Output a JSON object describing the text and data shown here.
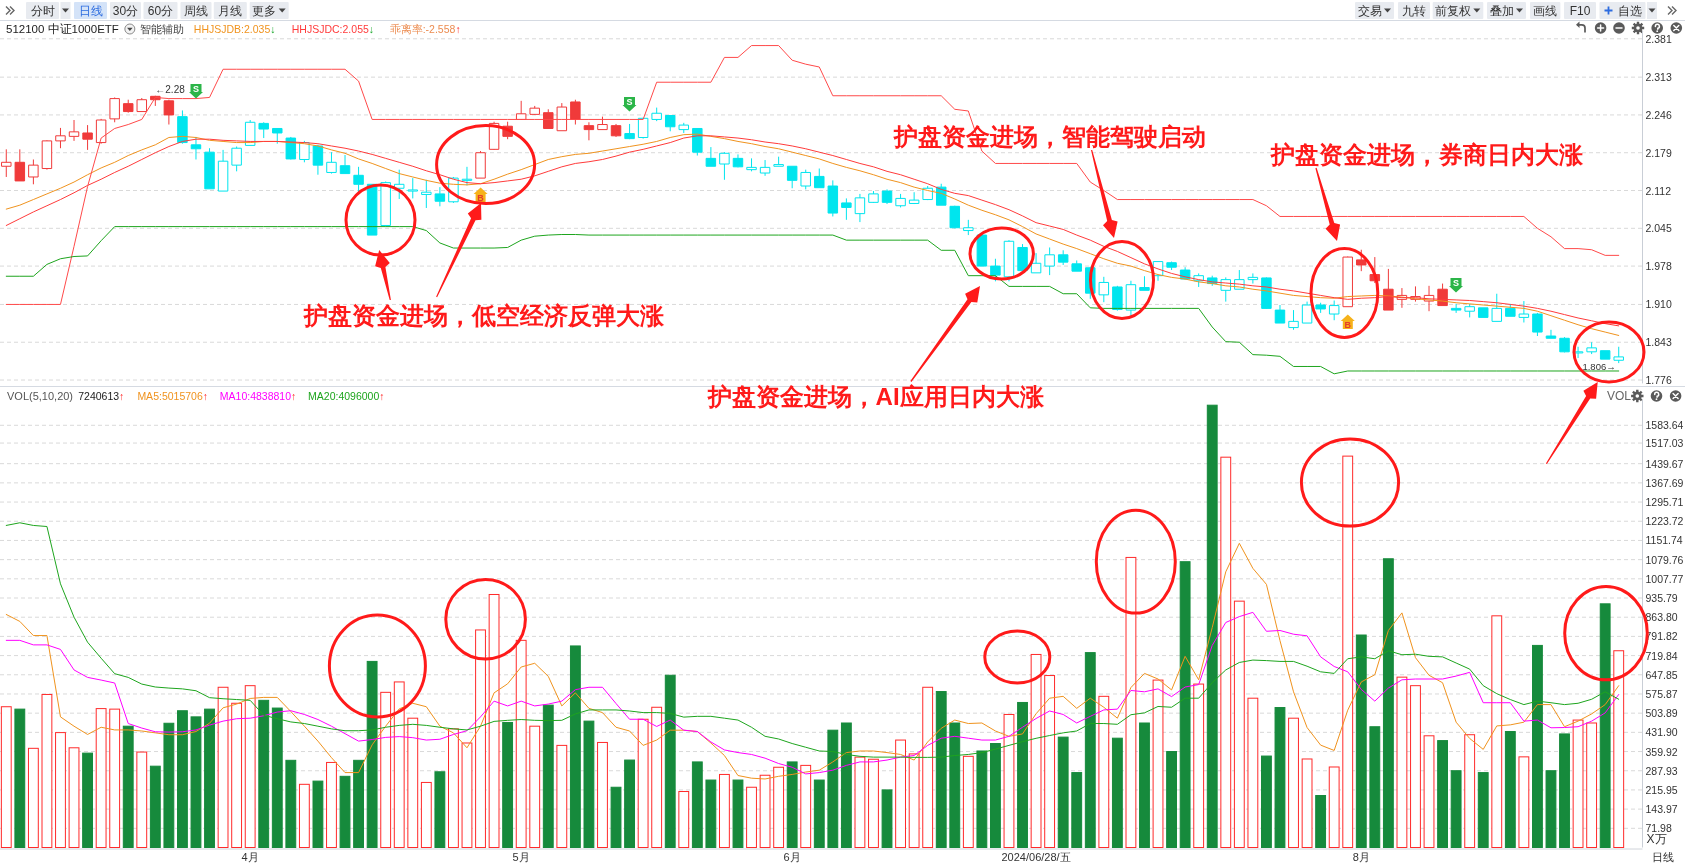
{
  "chart_data": [
    {
      "type": "candlestick",
      "title": "512100 中证1000ETF",
      "categories": [
        null,
        null,
        null,
        null,
        null,
        null,
        null,
        null,
        null,
        null,
        null,
        null,
        null,
        null,
        null,
        null,
        null,
        null,
        null,
        null,
        null,
        null,
        null,
        null,
        null,
        null,
        null,
        null,
        null,
        null,
        null,
        null,
        null,
        null,
        null,
        null,
        null,
        null,
        null,
        null,
        null,
        null,
        null,
        null,
        null,
        null,
        null,
        null,
        null,
        null,
        null,
        null,
        null,
        null,
        null,
        null,
        null,
        null,
        null,
        null,
        null,
        null,
        null,
        null,
        null,
        null,
        null,
        null,
        null,
        null,
        null,
        null,
        null,
        null,
        null,
        null,
        null,
        null,
        null,
        null,
        null,
        null,
        null,
        null,
        null,
        null,
        null,
        null,
        null,
        null,
        null,
        null,
        null,
        null,
        null,
        null,
        null,
        null,
        null,
        null,
        null,
        null,
        null,
        null,
        null,
        null,
        null,
        null,
        null,
        null,
        null,
        null,
        null,
        null,
        null,
        null,
        null,
        null,
        null,
        null
      ],
      "ohlc": [
        [
          2.155,
          2.185,
          2.136,
          2.162
        ],
        [
          2.162,
          2.185,
          2.129,
          2.129
        ],
        [
          2.136,
          2.167,
          2.123,
          2.157
        ],
        [
          2.151,
          2.201,
          2.149,
          2.2
        ],
        [
          2.2,
          2.223,
          2.187,
          2.209
        ],
        [
          2.208,
          2.237,
          2.2,
          2.216
        ],
        [
          2.214,
          2.228,
          2.184,
          2.203
        ],
        [
          2.197,
          2.239,
          2.195,
          2.237
        ],
        [
          2.239,
          2.277,
          2.233,
          2.275
        ],
        [
          2.266,
          2.273,
          2.25,
          2.252
        ],
        [
          2.252,
          2.276,
          2.252,
          2.273
        ],
        [
          2.279,
          2.28,
          2.262,
          2.273
        ],
        [
          2.271,
          2.273,
          2.229,
          2.246
        ],
        [
          2.243,
          2.254,
          2.195,
          2.197
        ],
        [
          2.193,
          2.207,
          2.167,
          2.186
        ],
        [
          2.18,
          2.187,
          2.115,
          2.115
        ],
        [
          2.111,
          2.184,
          2.111,
          2.164
        ],
        [
          2.157,
          2.19,
          2.146,
          2.187
        ],
        [
          2.192,
          2.237,
          2.192,
          2.233
        ],
        [
          2.231,
          2.233,
          2.205,
          2.221
        ],
        [
          2.222,
          2.222,
          2.195,
          2.214
        ],
        [
          2.205,
          2.207,
          2.167,
          2.168
        ],
        [
          2.167,
          2.2,
          2.162,
          2.197
        ],
        [
          2.191,
          2.193,
          2.14,
          2.157
        ],
        [
          2.144,
          2.18,
          2.142,
          2.162
        ],
        [
          2.156,
          2.175,
          2.142,
          2.142
        ],
        [
          2.139,
          2.154,
          2.108,
          2.123
        ],
        [
          2.123,
          2.123,
          2.033,
          2.033
        ],
        [
          2.05,
          2.128,
          2.048,
          2.126
        ],
        [
          2.116,
          2.149,
          2.097,
          2.123
        ],
        [
          2.111,
          2.134,
          2.098,
          2.113
        ],
        [
          2.105,
          2.131,
          2.081,
          2.109
        ],
        [
          2.106,
          2.118,
          2.084,
          2.093
        ],
        [
          2.092,
          2.136,
          2.09,
          2.134
        ],
        [
          2.13,
          2.154,
          2.121,
          2.132
        ],
        [
          2.134,
          2.182,
          2.134,
          2.179
        ],
        [
          2.185,
          2.234,
          2.184,
          2.231
        ],
        [
          2.226,
          2.234,
          2.203,
          2.208
        ],
        [
          2.238,
          2.271,
          2.238,
          2.248
        ],
        [
          2.247,
          2.262,
          2.246,
          2.258
        ],
        [
          2.25,
          2.256,
          2.222,
          2.222
        ],
        [
          2.218,
          2.267,
          2.218,
          2.26
        ],
        [
          2.269,
          2.273,
          2.229,
          2.238
        ],
        [
          2.227,
          2.233,
          2.201,
          2.22
        ],
        [
          2.22,
          2.243,
          2.22,
          2.229
        ],
        [
          2.227,
          2.23,
          2.207,
          2.209
        ],
        [
          2.213,
          2.23,
          2.203,
          2.204
        ],
        [
          2.206,
          2.241,
          2.204,
          2.24
        ],
        [
          2.238,
          2.259,
          2.235,
          2.249
        ],
        [
          2.245,
          2.245,
          2.217,
          2.225
        ],
        [
          2.22,
          2.232,
          2.214,
          2.228
        ],
        [
          2.222,
          2.222,
          2.174,
          2.18
        ],
        [
          2.169,
          2.189,
          2.155,
          2.155
        ],
        [
          2.159,
          2.18,
          2.131,
          2.178
        ],
        [
          2.169,
          2.176,
          2.153,
          2.154
        ],
        [
          2.149,
          2.169,
          2.146,
          2.153
        ],
        [
          2.143,
          2.166,
          2.138,
          2.153
        ],
        [
          2.155,
          2.172,
          2.155,
          2.158
        ],
        [
          2.155,
          2.155,
          2.116,
          2.13
        ],
        [
          2.12,
          2.149,
          2.114,
          2.144
        ],
        [
          2.137,
          2.151,
          2.117,
          2.117
        ],
        [
          2.12,
          2.13,
          2.066,
          2.072
        ],
        [
          2.09,
          2.098,
          2.06,
          2.082
        ],
        [
          2.071,
          2.106,
          2.056,
          2.099
        ],
        [
          2.091,
          2.111,
          2.09,
          2.106
        ],
        [
          2.111,
          2.114,
          2.088,
          2.091
        ],
        [
          2.085,
          2.106,
          2.082,
          2.098
        ],
        [
          2.089,
          2.109,
          2.088,
          2.095
        ],
        [
          2.096,
          2.12,
          2.095,
          2.116
        ],
        [
          2.118,
          2.124,
          2.086,
          2.086
        ],
        [
          2.084,
          2.085,
          2.045,
          2.046
        ],
        [
          2.041,
          2.06,
          2.033,
          2.046
        ],
        [
          2.033,
          2.035,
          1.978,
          1.978
        ],
        [
          1.978,
          1.991,
          1.951,
          1.962
        ],
        [
          1.959,
          2.024,
          1.951,
          2.022
        ],
        [
          2.011,
          2.017,
          1.97,
          1.97
        ],
        [
          1.966,
          2.001,
          1.966,
          1.983
        ],
        [
          1.978,
          2.011,
          1.962,
          1.998
        ],
        [
          1.998,
          2.006,
          1.98,
          1.985
        ],
        [
          1.982,
          1.988,
          1.969,
          1.969
        ],
        [
          1.975,
          1.977,
          1.92,
          1.93
        ],
        [
          1.927,
          1.959,
          1.914,
          1.949
        ],
        [
          1.941,
          1.943,
          1.899,
          1.901
        ],
        [
          1.9,
          1.952,
          1.89,
          1.945
        ],
        [
          1.94,
          1.96,
          1.935,
          1.935
        ],
        [
          1.961,
          1.987,
          1.952,
          1.986
        ],
        [
          1.984,
          1.986,
          1.971,
          1.976
        ],
        [
          1.971,
          1.976,
          1.954,
          1.955
        ],
        [
          1.952,
          1.965,
          1.941,
          1.961
        ],
        [
          1.957,
          1.961,
          1.943,
          1.947
        ],
        [
          1.935,
          1.958,
          1.915,
          1.954
        ],
        [
          1.937,
          1.971,
          1.937,
          1.954
        ],
        [
          1.954,
          1.965,
          1.947,
          1.958
        ],
        [
          1.957,
          1.958,
          1.902,
          1.903
        ],
        [
          1.9,
          1.909,
          1.877,
          1.877
        ],
        [
          1.869,
          1.9,
          1.865,
          1.88
        ],
        [
          1.877,
          1.915,
          1.877,
          1.909
        ],
        [
          1.909,
          1.913,
          1.895,
          1.902
        ],
        [
          1.893,
          1.917,
          1.882,
          1.908
        ],
        [
          1.906,
          1.995,
          1.906,
          1.994
        ],
        [
          1.989,
          2.007,
          1.969,
          1.98
        ],
        [
          1.963,
          1.994,
          1.948,
          1.952
        ],
        [
          1.937,
          1.973,
          1.9,
          1.9
        ],
        [
          1.919,
          1.939,
          1.904,
          1.926
        ],
        [
          1.919,
          1.942,
          1.915,
          1.924
        ],
        [
          1.916,
          1.943,
          1.898,
          1.926
        ],
        [
          1.937,
          1.947,
          1.908,
          1.908
        ],
        [
          1.903,
          1.911,
          1.895,
          1.9
        ],
        [
          1.898,
          1.911,
          1.887,
          1.906
        ],
        [
          1.904,
          1.904,
          1.887,
          1.887
        ],
        [
          1.88,
          1.929,
          1.88,
          1.903
        ],
        [
          1.903,
          1.911,
          1.889,
          1.889
        ],
        [
          1.887,
          1.916,
          1.878,
          1.893
        ],
        [
          1.893,
          1.895,
          1.854,
          1.861
        ],
        [
          1.854,
          1.865,
          1.85,
          1.85
        ],
        [
          1.85,
          1.852,
          1.825,
          1.826
        ],
        [
          1.824,
          1.835,
          1.815,
          1.826
        ],
        [
          1.826,
          1.843,
          1.822,
          1.833
        ],
        [
          1.828,
          1.828,
          1.813,
          1.813
        ],
        [
          1.811,
          1.835,
          1.806,
          1.817
        ]
      ],
      "colors": [
        "#f03a3a",
        "#f03a3a",
        "#f03a3a",
        "#f03a3a",
        "#f03a3a",
        "#f03a3a",
        "#f03a3a",
        "#f03a3a",
        "#f03a3a",
        "#f03a3a",
        "#f03a3a",
        "#f03a3a",
        "#f03a3a",
        "#00e5ee",
        "#00e5ee",
        "#00e5ee",
        "#00e5ee",
        "#00e5ee",
        "#00e5ee",
        "#00e5ee",
        "#00e5ee",
        "#00e5ee",
        "#00e5ee",
        "#00e5ee",
        "#00e5ee",
        "#00e5ee",
        "#00e5ee",
        "#00e5ee",
        "#00e5ee",
        "#00e5ee",
        "#00e5ee",
        "#00e5ee",
        "#00e5ee",
        "#00e5ee",
        "#00e5ee",
        "#f03a3a",
        "#f03a3a",
        "#f03a3a",
        "#f03a3a",
        "#f03a3a",
        "#f03a3a",
        "#f03a3a",
        "#f03a3a",
        "#f03a3a",
        "#f03a3a",
        "#f03a3a",
        "#00e5ee",
        "#00e5ee",
        "#00e5ee",
        "#00e5ee",
        "#00e5ee",
        "#00e5ee",
        "#00e5ee",
        "#00e5ee",
        "#00e5ee",
        "#00e5ee",
        "#00e5ee",
        "#00e5ee",
        "#00e5ee",
        "#00e5ee",
        "#00e5ee",
        "#00e5ee",
        "#00e5ee",
        "#00e5ee",
        "#00e5ee",
        "#00e5ee",
        "#00e5ee",
        "#00e5ee",
        "#00e5ee",
        "#00e5ee",
        "#00e5ee",
        "#00e5ee",
        "#00e5ee",
        "#00e5ee",
        "#00e5ee",
        "#00e5ee",
        "#00e5ee",
        "#00e5ee",
        "#00e5ee",
        "#00e5ee",
        "#00e5ee",
        "#00e5ee",
        "#00e5ee",
        "#00e5ee",
        "#00e5ee",
        "#00e5ee",
        "#00e5ee",
        "#00e5ee",
        "#00e5ee",
        "#00e5ee",
        "#00e5ee",
        "#00e5ee",
        "#00e5ee",
        "#00e5ee",
        "#00e5ee",
        "#00e5ee",
        "#00e5ee",
        "#00e5ee",
        "#00e5ee",
        "#f03a3a",
        "#f03a3a",
        "#f03a3a",
        "#f03a3a",
        "#f03a3a",
        "#f03a3a",
        "#f03a3a",
        "#f03a3a",
        "#00e5ee",
        "#00e5ee",
        "#00e5ee",
        "#00e5ee",
        "#00e5ee",
        "#00e5ee",
        "#00e5ee",
        "#00e5ee",
        "#00e5ee",
        "#00e5ee",
        "#00e5ee",
        "#00e5ee",
        "#00e5ee"
      ],
      "series": [
        {
          "type": "line",
          "name": "HHJSJDB:2.035↓",
          "color": "#f0931e",
          "values": [
            2.079,
            2.086,
            2.096,
            2.106,
            2.116,
            2.127,
            2.14,
            2.152,
            2.162,
            2.174,
            2.184,
            2.193,
            2.206,
            2.208,
            2.206,
            2.201,
            2.199,
            2.197,
            2.197,
            2.199,
            2.199,
            2.197,
            2.195,
            2.191,
            2.184,
            2.178,
            2.168,
            2.16,
            2.151,
            2.142,
            2.136,
            2.13,
            2.125,
            2.123,
            2.122,
            2.124,
            2.132,
            2.141,
            2.149,
            2.158,
            2.167,
            2.172,
            2.176,
            2.178,
            2.182,
            2.186,
            2.19,
            2.194,
            2.199,
            2.206,
            2.211,
            2.212,
            2.208,
            2.204,
            2.199,
            2.195,
            2.19,
            2.186,
            2.18,
            2.174,
            2.168,
            2.16,
            2.153,
            2.147,
            2.14,
            2.132,
            2.126,
            2.118,
            2.112,
            2.107,
            2.097,
            2.086,
            2.077,
            2.069,
            2.06,
            2.048,
            2.035,
            2.026,
            2.017,
            2.009,
            2.0,
            1.991,
            1.983,
            1.978,
            1.97,
            1.963,
            1.958,
            1.955,
            1.95,
            1.947,
            1.943,
            1.941,
            1.937,
            1.934,
            1.93,
            1.926,
            1.924,
            1.922,
            1.921,
            1.924,
            1.925,
            1.926,
            1.925,
            1.923,
            1.92,
            1.918,
            1.916,
            1.913,
            1.911,
            1.909,
            1.907,
            1.905,
            1.903,
            1.898,
            1.89,
            1.882,
            1.874,
            1.867,
            1.861,
            1.855
          ]
        },
        {
          "type": "line",
          "name": "HHJSJDC:2.055↓",
          "color": "#ff3b3b",
          "values": [
            2.05,
            2.062,
            2.074,
            2.085,
            2.096,
            2.108,
            2.121,
            2.132,
            2.144,
            2.155,
            2.167,
            2.179,
            2.19,
            2.199,
            2.203,
            2.203,
            2.201,
            2.2,
            2.199,
            2.199,
            2.199,
            2.198,
            2.197,
            2.195,
            2.191,
            2.187,
            2.182,
            2.176,
            2.169,
            2.162,
            2.155,
            2.147,
            2.14,
            2.132,
            2.126,
            2.124,
            2.126,
            2.129,
            2.132,
            2.138,
            2.146,
            2.154,
            2.16,
            2.163,
            2.167,
            2.173,
            2.18,
            2.185,
            2.191,
            2.197,
            2.205,
            2.209,
            2.209,
            2.207,
            2.205,
            2.202,
            2.198,
            2.195,
            2.191,
            2.186,
            2.18,
            2.174,
            2.167,
            2.16,
            2.154,
            2.146,
            2.14,
            2.132,
            2.124,
            2.114,
            2.107,
            2.103,
            2.095,
            2.087,
            2.078,
            2.067,
            2.055,
            2.049,
            2.043,
            2.033,
            2.024,
            2.013,
            2.004,
            1.993,
            1.982,
            1.973,
            1.965,
            1.959,
            1.954,
            1.95,
            1.948,
            1.946,
            1.943,
            1.941,
            1.937,
            1.934,
            1.93,
            1.926,
            1.922,
            1.919,
            1.921,
            1.922,
            1.924,
            1.922,
            1.922,
            1.92,
            1.919,
            1.918,
            1.917,
            1.915,
            1.913,
            1.91,
            1.907,
            1.903,
            1.898,
            1.892,
            1.886,
            1.881,
            1.876,
            1.872
          ]
        },
        {
          "type": "line",
          "color": "#ff4a4a",
          "values": [
            1.91,
            1.91,
            1.91,
            1.91,
            1.91,
            2.013,
            2.119,
            2.205,
            2.222,
            2.229,
            2.238,
            2.277,
            2.275,
            2.275,
            2.275,
            2.277,
            2.327,
            2.327,
            2.327,
            2.327,
            2.327,
            2.327,
            2.327,
            2.327,
            2.327,
            2.327,
            2.306,
            2.238,
            2.238,
            2.238,
            2.238,
            2.238,
            2.238,
            2.238,
            2.238,
            2.238,
            2.238,
            2.238,
            2.238,
            2.238,
            2.238,
            2.238,
            2.238,
            2.238,
            2.238,
            2.238,
            2.238,
            2.238,
            2.304,
            2.304,
            2.304,
            2.304,
            2.304,
            2.348,
            2.348,
            2.369,
            2.369,
            2.369,
            2.343,
            2.336,
            2.331,
            2.28,
            2.28,
            2.28,
            2.28,
            2.28,
            2.28,
            2.28,
            2.28,
            2.28,
            2.256,
            2.253,
            2.182,
            2.16,
            2.16,
            2.16,
            2.16,
            2.16,
            2.16,
            2.16,
            2.127,
            2.112,
            2.096,
            2.096,
            2.096,
            2.096,
            2.096,
            2.096,
            2.096,
            2.096,
            2.096,
            2.096,
            2.096,
            2.085,
            2.066,
            2.066,
            2.066,
            2.066,
            2.066,
            2.066,
            2.066,
            2.066,
            2.066,
            2.066,
            2.066,
            2.066,
            2.066,
            2.066,
            2.066,
            2.066,
            2.066,
            2.066,
            2.066,
            2.045,
            2.03,
            2.009,
            2.009,
            2.007,
            1.997,
            1.997
          ]
        },
        {
          "type": "line",
          "color": "#1ea51e",
          "values": [
            1.96,
            1.96,
            1.96,
            1.981,
            1.991,
            1.995,
            1.996,
            2.023,
            2.048,
            2.048,
            2.048,
            2.048,
            2.048,
            2.048,
            2.048,
            2.048,
            2.048,
            2.048,
            2.048,
            2.048,
            2.048,
            2.048,
            2.048,
            2.048,
            2.048,
            2.048,
            2.048,
            2.048,
            2.048,
            2.048,
            2.048,
            2.041,
            2.019,
            2.01,
            2.01,
            2.01,
            2.01,
            2.011,
            2.024,
            2.031,
            2.033,
            2.034,
            2.034,
            2.033,
            2.033,
            2.033,
            2.033,
            2.033,
            2.033,
            2.033,
            2.033,
            2.033,
            2.033,
            2.033,
            2.033,
            2.033,
            2.033,
            2.033,
            2.033,
            2.033,
            2.033,
            2.033,
            2.024,
            2.024,
            2.024,
            2.024,
            2.024,
            2.024,
            2.024,
            2.006,
            2.006,
            1.961,
            1.961,
            1.961,
            1.942,
            1.942,
            1.942,
            1.942,
            1.929,
            1.929,
            1.904,
            1.903,
            1.903,
            1.903,
            1.903,
            1.903,
            1.903,
            1.903,
            1.903,
            1.87,
            1.844,
            1.843,
            1.821,
            1.82,
            1.818,
            1.8,
            1.8,
            1.8,
            1.787,
            1.792,
            1.792,
            1.792,
            1.792,
            1.792,
            1.792,
            1.792,
            1.792,
            1.792,
            1.792,
            1.792,
            1.792,
            1.792,
            1.792,
            1.792,
            1.792,
            1.792,
            1.792,
            1.792,
            1.792,
            1.792
          ]
        }
      ],
      "ylim": [
        1.77,
        2.395
      ],
      "yticks": [
        1.776,
        1.843,
        {
          "value": 1.91,
          "label": "1.910"
        },
        1.978,
        2.045,
        2.112,
        2.179,
        2.246,
        2.313,
        2.381
      ],
      "grid": "y",
      "legend": "top left",
      "tick_labels": "y",
      "annotations": [
        "分时",
        "日线",
        "30分",
        "60分",
        "周线",
        "月线",
        "更多",
        "交易",
        "九转",
        "前复权",
        "叠加",
        "画线",
        "F10",
        "自选",
        "智能辅助",
        "乖离率:-2.558↑",
        {
          "text": "←2.28",
          "y": 2.28
        },
        {
          "text": "1.806→",
          "y": 1.806
        },
        "S",
        "S",
        "S",
        "B",
        "B",
        "护盘资金进场，低空经济反弹大涨",
        "护盘资金进场，智能驾驶启动",
        "护盘资金进场，券商日内大涨",
        "护盘资金进场，AI应用日内大涨"
      ]
    },
    {
      "type": "bar",
      "title": "VOL(5,10,20)",
      "ylabel": "X万",
      "categories": [
        null,
        null,
        null,
        null,
        null,
        null,
        null,
        null,
        null,
        null,
        null,
        null,
        null,
        null,
        null,
        null,
        null,
        null,
        "4月",
        null,
        null,
        null,
        null,
        null,
        null,
        null,
        null,
        null,
        null,
        null,
        null,
        null,
        null,
        null,
        null,
        null,
        null,
        null,
        "5月",
        null,
        null,
        null,
        null,
        null,
        null,
        null,
        null,
        null,
        null,
        null,
        null,
        null,
        null,
        null,
        null,
        null,
        null,
        null,
        "6月",
        null,
        null,
        null,
        null,
        null,
        null,
        null,
        null,
        null,
        null,
        null,
        null,
        null,
        null,
        null,
        null,
        null,
        "2024/06/28/五",
        null,
        null,
        null,
        null,
        null,
        null,
        null,
        null,
        null,
        null,
        null,
        null,
        null,
        null,
        null,
        null,
        null,
        null,
        null,
        null,
        null,
        null,
        null,
        "8月",
        null,
        null,
        null,
        null,
        null,
        null,
        null,
        null,
        null,
        null,
        null,
        null,
        null,
        null,
        null,
        null,
        null,
        null,
        null
      ],
      "series": [
        {
          "values": [
            528,
            519,
            372,
            574,
            431,
            374,
            354,
            521,
            519,
            455,
            358,
            305,
            466,
            513,
            490,
            519,
            601,
            541,
            607,
            552,
            523,
            327,
            237,
            249,
            319,
            267,
            327,
            698,
            582,
            621,
            485,
            244,
            284,
            445,
            392,
            816,
            949,
            469,
            777,
            455,
            534,
            383,
            756,
            474,
            394,
            226,
            328,
            481,
            526,
            646,
            210,
            321,
            253,
            274,
            253,
            226,
            271,
            301,
            321,
            308,
            253,
            440,
            467,
            339,
            331,
            216,
            403,
            351,
            601,
            585,
            467,
            342,
            362,
            390,
            499,
            544,
            724.06,
            645,
            414,
            281,
            731,
            567,
            410,
            1088,
            467,
            628,
            360,
            1072,
            613,
            1659,
            1464,
            924,
            560,
            343,
            525,
            485,
            332,
            195,
            302,
            1468,
            797,
            453,
            1083,
            639,
            607,
            419,
            401,
            288,
            423,
            281,
            869,
            435,
            340,
            758,
            288,
            426,
            478,
            467,
            914,
            738
          ],
          "colors": [
            "#ff2a2a",
            "#168a3c",
            "#ff2a2a",
            "#ff2a2a",
            "#ff2a2a",
            "#ff2a2a",
            "#168a3c",
            "#ff2a2a",
            "#ff2a2a",
            "#168a3c",
            "#ff2a2a",
            "#168a3c",
            "#168a3c",
            "#168a3c",
            "#168a3c",
            "#168a3c",
            "#ff2a2a",
            "#ff2a2a",
            "#ff2a2a",
            "#168a3c",
            "#168a3c",
            "#168a3c",
            "#ff2a2a",
            "#168a3c",
            "#ff2a2a",
            "#168a3c",
            "#168a3c",
            "#168a3c",
            "#ff2a2a",
            "#ff2a2a",
            "#ff2a2a",
            "#ff2a2a",
            "#168a3c",
            "#ff2a2a",
            "#ff2a2a",
            "#ff2a2a",
            "#ff2a2a",
            "#168a3c",
            "#ff2a2a",
            "#ff2a2a",
            "#168a3c",
            "#ff2a2a",
            "#168a3c",
            "#168a3c",
            "#ff2a2a",
            "#168a3c",
            "#168a3c",
            "#ff2a2a",
            "#ff2a2a",
            "#168a3c",
            "#ff2a2a",
            "#168a3c",
            "#168a3c",
            "#ff2a2a",
            "#168a3c",
            "#ff2a2a",
            "#ff2a2a",
            "#ff2a2a",
            "#168a3c",
            "#ff2a2a",
            "#168a3c",
            "#168a3c",
            "#168a3c",
            "#ff2a2a",
            "#ff2a2a",
            "#168a3c",
            "#ff2a2a",
            "#ff2a2a",
            "#ff2a2a",
            "#168a3c",
            "#168a3c",
            "#ff2a2a",
            "#168a3c",
            "#168a3c",
            "#ff2a2a",
            "#168a3c",
            "#ff2a2a",
            "#ff2a2a",
            "#168a3c",
            "#168a3c",
            "#168a3c",
            "#ff2a2a",
            "#168a3c",
            "#ff2a2a",
            "#168a3c",
            "#ff2a2a",
            "#168a3c",
            "#168a3c",
            "#ff2a2a",
            "#168a3c",
            "#ff2a2a",
            "#ff2a2a",
            "#ff2a2a",
            "#168a3c",
            "#168a3c",
            "#ff2a2a",
            "#ff2a2a",
            "#168a3c",
            "#ff2a2a",
            "#ff2a2a",
            "#168a3c",
            "#168a3c",
            "#168a3c",
            "#ff2a2a",
            "#ff2a2a",
            "#ff2a2a",
            "#168a3c",
            "#168a3c",
            "#ff2a2a",
            "#168a3c",
            "#ff2a2a",
            "#168a3c",
            "#ff2a2a",
            "#168a3c",
            "#168a3c",
            "#168a3c",
            "#ff2a2a",
            "#ff2a2a",
            "#168a3c",
            "#ff2a2a"
          ]
        },
        {
          "type": "line",
          "name": "MA5:5015706↑",
          "color": "#f0931e",
          "values": [
            874,
            848,
            795,
            795,
            490,
            455,
            424,
            451,
            441,
            441,
            437,
            430,
            423,
            423,
            435,
            466,
            524,
            538,
            559,
            563,
            563,
            510,
            455,
            399,
            337,
            281,
            281,
            385,
            455,
            520,
            541,
            528,
            455,
            430,
            374,
            455,
            580,
            614,
            677,
            691,
            642,
            531,
            580,
            522,
            506,
            451,
            437,
            383,
            403,
            440,
            440,
            435,
            392,
            345,
            270,
            260,
            257,
            267,
            274,
            283,
            290,
            321,
            356,
            362,
            362,
            356,
            349,
            328,
            396,
            447,
            478,
            465,
            467,
            437,
            417,
            426,
            501.57,
            560,
            567,
            522,
            560,
            526,
            485,
            600,
            653,
            632,
            591,
            717,
            629,
            825,
            1034,
            1141,
            1047,
            987,
            776,
            584,
            450,
            384,
            364,
            515,
            621,
            648,
            814,
            880,
            712,
            646,
            618,
            470,
            409,
            368,
            456,
            460,
            470,
            536,
            536,
            453,
            474,
            501,
            536,
            607
          ]
        },
        {
          "type": "line",
          "name": "MA10:4838810↑",
          "color": "#ff00ff",
          "values": [
            777,
            777,
            760,
            760,
            743,
            666,
            638,
            628,
            617,
            465,
            448,
            434,
            433,
            434,
            441,
            459,
            474,
            483,
            485,
            494,
            508,
            513,
            499,
            480,
            455,
            427,
            399,
            405,
            413,
            416,
            412,
            403,
            406,
            424,
            438,
            490,
            549,
            531,
            549,
            531,
            538,
            549,
            592,
            601,
            601,
            540,
            481,
            481,
            454,
            478,
            440,
            435,
            396,
            366,
            356,
            349,
            335,
            315,
            301,
            276,
            281,
            290,
            308,
            321,
            321,
            328,
            339,
            345,
            383,
            410,
            417,
            410,
            403,
            403,
            417,
            451,
            483.88,
            512,
            499,
            467,
            492,
            516,
            519,
            589,
            584,
            595,
            566,
            602,
            611,
            758,
            844,
            866,
            882,
            811,
            814,
            800,
            794,
            715,
            679,
            659,
            593,
            549,
            598,
            629,
            632,
            632,
            632,
            643,
            657,
            543,
            543,
            543,
            474,
            478,
            449,
            450,
            453,
            474,
            505,
            574
          ]
        },
        {
          "type": "line",
          "name": "MA20:4096000↑",
          "color": "#1ea51e",
          "values": [
            1208,
            1218,
            1208,
            1204,
            989,
            864,
            770,
            710,
            652,
            638,
            613,
            602,
            598,
            595,
            588,
            562,
            558,
            555,
            552,
            496,
            483,
            471,
            465,
            455,
            445,
            438,
            438,
            441,
            451,
            458,
            462,
            458,
            451,
            445,
            441,
            455,
            473,
            477,
            480,
            477,
            476,
            477,
            501,
            516,
            516,
            516,
            512,
            506,
            506,
            503,
            489,
            492,
            492,
            485,
            478,
            451,
            417,
            407,
            390,
            376,
            362,
            360,
            349,
            342,
            339,
            339,
            339,
            338,
            338,
            339,
            345,
            349,
            356,
            369,
            383,
            397,
            409.6,
            420,
            430,
            437,
            465,
            465,
            462,
            498,
            505,
            529,
            526,
            560,
            560,
            618,
            666,
            694,
            703,
            701,
            698,
            698,
            680,
            659,
            653,
            708,
            715,
            708,
            738,
            723,
            725,
            717,
            715,
            692,
            669,
            607,
            577,
            555,
            536,
            549,
            543,
            536,
            541,
            556,
            584,
            556
          ]
        }
      ],
      "ylim": [
        0,
        1680
      ],
      "yticks": [
        71.98,
        143.97,
        215.95,
        287.93,
        359.92,
        {
          "value": 431.9,
          "label": "431.90"
        },
        503.89,
        575.87,
        647.85,
        719.84,
        791.82,
        {
          "value": 863.8,
          "label": "863.80"
        },
        935.79,
        1007.77,
        1079.76,
        1151.74,
        1223.72,
        1295.71,
        1367.69,
        1439.67,
        1517.03,
        1583.64
      ],
      "grid": "y",
      "legend": "top left",
      "annotations": [
        "7240613↑",
        "VOL",
        "日线"
      ]
    }
  ]
}
